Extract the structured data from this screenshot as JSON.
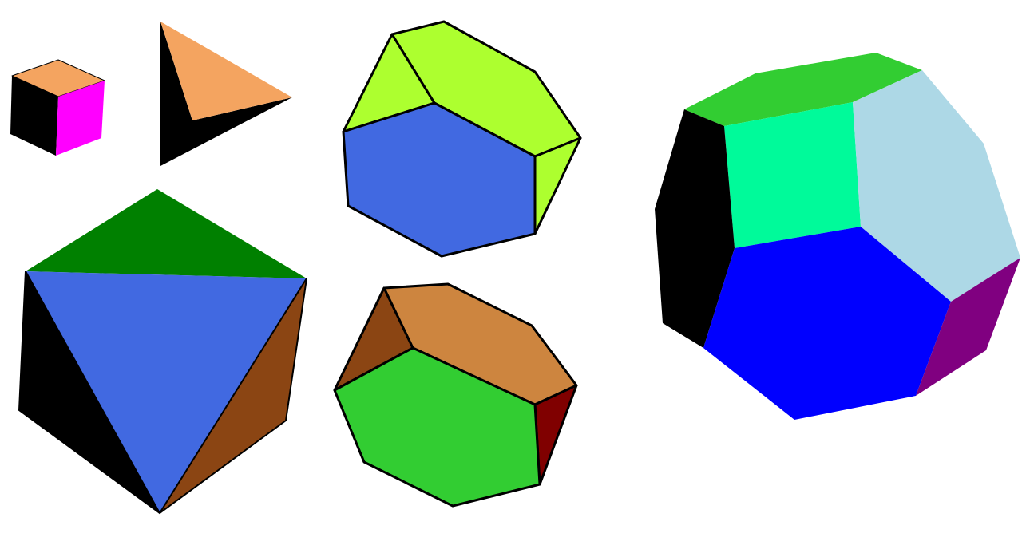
{
  "palette": {
    "background": "#ffffff",
    "outline": "#000000",
    "cube_top": "#f4a460",
    "cube_left": "#000000",
    "cube_right": "#ff00ff",
    "tetra_front": "#f4a460",
    "tetra_side": "#000000",
    "octa_top": "#008000",
    "octa_front": "#4169e1",
    "octa_left": "#000000",
    "octa_right": "#8b4513",
    "trunc_tetra_a_top": "#adff2f",
    "trunc_tetra_a_front": "#4169e1",
    "trunc_tetra_b_top": "#cd853f",
    "trunc_tetra_b_left": "#8b4513",
    "trunc_tetra_b_front": "#32cd32",
    "trunc_tetra_b_right": "#800000",
    "trunc_octa_top": "#32cd32",
    "trunc_octa_square": "#00fa9a",
    "trunc_octa_right_hex": "#add8e6",
    "trunc_octa_left": "#000000",
    "trunc_octa_front_hex": "#0000ff",
    "trunc_octa_bottom_right": "#800080"
  },
  "shapes": [
    "cube",
    "tetrahedron",
    "octahedron",
    "truncated-tetrahedron-green",
    "truncated-tetrahedron-brown",
    "truncated-octahedron"
  ]
}
